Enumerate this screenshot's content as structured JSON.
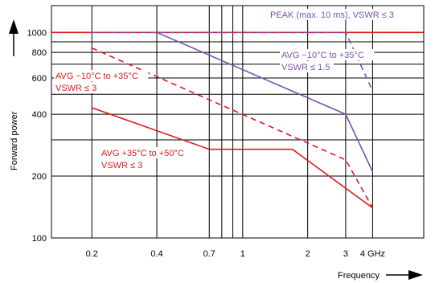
{
  "chart_data": {
    "type": "line",
    "xlabel": "Frequency",
    "ylabel": "Forward power",
    "x_scale": "log",
    "y_scale": "log",
    "xlim": [
      0.13,
      6.9
    ],
    "ylim": [
      100,
      1350
    ],
    "x_ticks": [
      {
        "value": 0.2,
        "label": "0.2",
        "grid": true
      },
      {
        "value": 0.4,
        "label": "0.4",
        "grid": true
      },
      {
        "value": 0.7,
        "label": "0.7",
        "grid": true
      },
      {
        "value": 0.8,
        "label": "",
        "grid": true
      },
      {
        "value": 0.9,
        "label": "",
        "grid": true
      },
      {
        "value": 1,
        "label": "1",
        "grid": true
      },
      {
        "value": 2,
        "label": "2",
        "grid": true
      },
      {
        "value": 3,
        "label": "3",
        "grid": true
      },
      {
        "value": 4,
        "label": "4 GHz",
        "grid": true
      }
    ],
    "y_ticks": [
      {
        "value": 100,
        "label": "100"
      },
      {
        "value": 200,
        "label": "200"
      },
      {
        "value": 300,
        "label": ""
      },
      {
        "value": 400,
        "label": "400"
      },
      {
        "value": 500,
        "label": ""
      },
      {
        "value": 600,
        "label": "600"
      },
      {
        "value": 700,
        "label": ""
      },
      {
        "value": 800,
        "label": "800"
      },
      {
        "value": 900,
        "label": ""
      },
      {
        "value": 1000,
        "label": "1000"
      }
    ],
    "reference_line": {
      "y": 1000,
      "color": "#e2191e"
    },
    "series": [
      {
        "name": "PEAK (max. 10 ms), VSWR ≤ 3",
        "color": "#7b52ab",
        "dash": true,
        "x": [
          0.2,
          3.0,
          4.0
        ],
        "y": [
          1000,
          1000,
          520
        ]
      },
      {
        "name": "AVG −10°C to +35°C VSWR ≤ 1.5",
        "color": "#7b52ab",
        "dash": false,
        "x": [
          0.4,
          3.0,
          4.0
        ],
        "y": [
          1000,
          400,
          210
        ]
      },
      {
        "name": "AVG −10°C to +35°C VSWR ≤ 3",
        "color": "#e2191e",
        "dash": true,
        "x": [
          0.2,
          3.0,
          4.0
        ],
        "y": [
          840,
          240,
          140
        ]
      },
      {
        "name": "AVG +35°C to +50°C VSWR ≤ 3",
        "color": "#e2191e",
        "dash": false,
        "x": [
          0.2,
          0.7,
          1.7,
          4.0
        ],
        "y": [
          430,
          270,
          270,
          140
        ]
      }
    ],
    "annotations": [
      {
        "lines": [
          "PEAK (max. 10 ms), VSWR ≤ 3"
        ],
        "color": "#7b52ab"
      },
      {
        "lines": [
          "AVG −10°C to +35°C",
          "VSWR ≤ 1.5"
        ],
        "color": "#7b52ab"
      },
      {
        "lines": [
          "AVG −10°C to +35°C",
          "VSWR ≤ 3"
        ],
        "color": "#e2191e"
      },
      {
        "lines": [
          "AVG +35°C to +50°C",
          "VSWR ≤ 3"
        ],
        "color": "#e2191e"
      }
    ]
  }
}
